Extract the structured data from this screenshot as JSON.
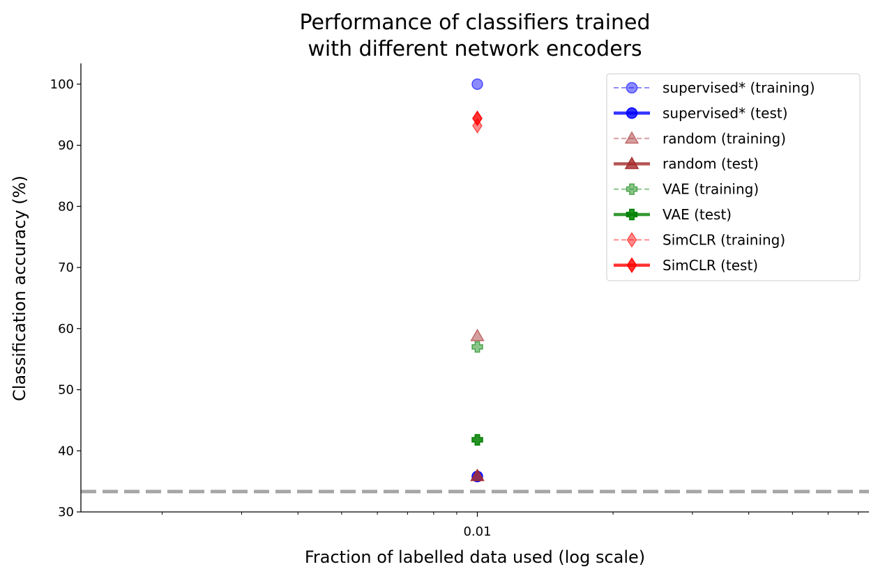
{
  "chart_data": {
    "type": "scatter",
    "title": "Performance of classifiers trained\nwith different network encoders",
    "title_lines": [
      "Performance of classifiers trained",
      "with different network encoders"
    ],
    "xlabel": "Fraction of labelled data used (log scale)",
    "ylabel": "Classification accuracy (%)",
    "xscale": "log",
    "xlim": [
      0.00132,
      0.0739
    ],
    "ylim": [
      30,
      103.4
    ],
    "xticks": [
      0.01
    ],
    "xtick_labels": [
      "0.01"
    ],
    "yticks": [
      30,
      40,
      50,
      60,
      70,
      80,
      90,
      100
    ],
    "ytick_labels": [
      "30",
      "40",
      "50",
      "60",
      "70",
      "80",
      "90",
      "100"
    ],
    "grid": false,
    "legend_position": "top-right",
    "chance_level": {
      "y": 33.33,
      "style": "dashed",
      "color": "#a6a6a6"
    },
    "series": [
      {
        "name": "supervised* (training)",
        "x": [
          0.01
        ],
        "y": [
          100.0
        ],
        "color": "#0000ff",
        "marker": "circle",
        "alpha": 0.45,
        "line": "dashed"
      },
      {
        "name": "supervised* (test)",
        "x": [
          0.01
        ],
        "y": [
          35.8
        ],
        "color": "#0000ff",
        "marker": "circle",
        "alpha": 0.8,
        "line": "solid"
      },
      {
        "name": "random (training)",
        "x": [
          0.01
        ],
        "y": [
          58.8
        ],
        "color": "#a52a2a",
        "marker": "triangle",
        "alpha": 0.45,
        "line": "dashed"
      },
      {
        "name": "random (test)",
        "x": [
          0.01
        ],
        "y": [
          35.9
        ],
        "color": "#a52a2a",
        "marker": "triangle",
        "alpha": 0.8,
        "line": "solid"
      },
      {
        "name": "VAE (training)",
        "x": [
          0.01
        ],
        "y": [
          57.0
        ],
        "color": "#008000",
        "marker": "plus",
        "alpha": 0.45,
        "line": "dashed"
      },
      {
        "name": "VAE (test)",
        "x": [
          0.01
        ],
        "y": [
          41.8
        ],
        "color": "#008000",
        "marker": "plus",
        "alpha": 0.85,
        "line": "solid"
      },
      {
        "name": "SimCLR (training)",
        "x": [
          0.01
        ],
        "y": [
          93.2
        ],
        "color": "#ff0000",
        "marker": "diamond",
        "alpha": 0.45,
        "line": "dashed"
      },
      {
        "name": "SimCLR (test)",
        "x": [
          0.01
        ],
        "y": [
          94.4
        ],
        "color": "#ff0000",
        "marker": "diamond",
        "alpha": 0.8,
        "line": "solid"
      }
    ]
  }
}
